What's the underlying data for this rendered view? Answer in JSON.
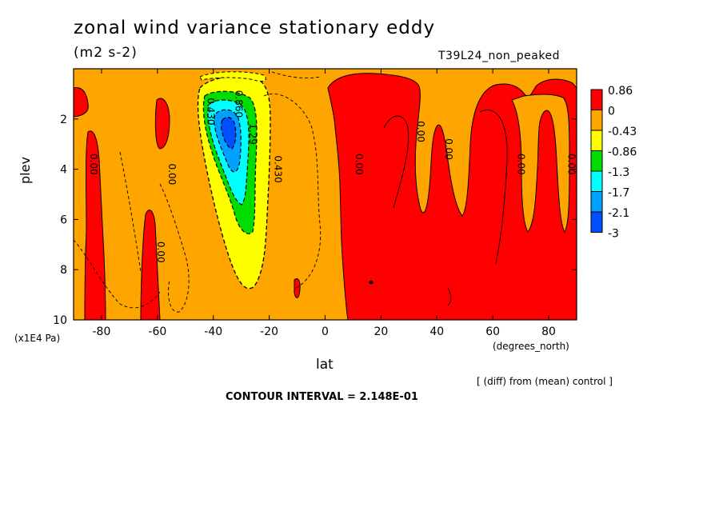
{
  "chart_data": {
    "type": "heatmap",
    "title": "zonal wind variance stationary eddy",
    "units": "(m2 s-2)",
    "experiment": "T39L24_non_peaked",
    "xlabel": "lat",
    "x_units": "(degrees_north)",
    "ylabel": "plev",
    "y_units": "(x1E4 Pa)",
    "x_ticks": [
      -80,
      -60,
      -40,
      -20,
      0,
      20,
      40,
      60,
      80
    ],
    "y_ticks": [
      2,
      4,
      6,
      8,
      10
    ],
    "xlim": [
      -90,
      90
    ],
    "ylim": [
      10,
      0
    ],
    "legend": {
      "placement": "right",
      "labels": [
        "0.86",
        "0",
        "-0.43",
        "-0.86",
        "-1.3",
        "-1.7",
        "-2.1",
        "-3"
      ],
      "colors": [
        "#ff0000",
        "#ffa500",
        "#ffff00",
        "#00dd00",
        "#00ffff",
        "#00a0ff",
        "#0050ff"
      ]
    },
    "contour_labels": [
      {
        "text": "0.00",
        "lat": -84,
        "plev": 3.8
      },
      {
        "text": "0.00",
        "lat": -56,
        "plev": 4.2
      },
      {
        "text": "0.00",
        "lat": -60,
        "plev": 7.3
      },
      {
        "text": "0.430",
        "lat": -42,
        "plev": 1.7
      },
      {
        "text": "0.860",
        "lat": -32,
        "plev": 1.4
      },
      {
        "text": "1.29",
        "lat": -27,
        "plev": 2.6
      },
      {
        "text": "0.430",
        "lat": -18,
        "plev": 4.0
      },
      {
        "text": "0.00",
        "lat": 11,
        "plev": 3.8
      },
      {
        "text": "0.00",
        "lat": 33,
        "plev": 2.5
      },
      {
        "text": "0.00",
        "lat": 43,
        "plev": 3.2
      },
      {
        "text": "0.00",
        "lat": 69,
        "plev": 3.8
      },
      {
        "text": "0.00",
        "lat": 87,
        "plev": 3.8
      }
    ],
    "grid": false
  },
  "annotations": {
    "diff_note": "[ (diff) from (mean) control ]",
    "contour_interval": "CONTOUR INTERVAL = 2.148E-01"
  }
}
